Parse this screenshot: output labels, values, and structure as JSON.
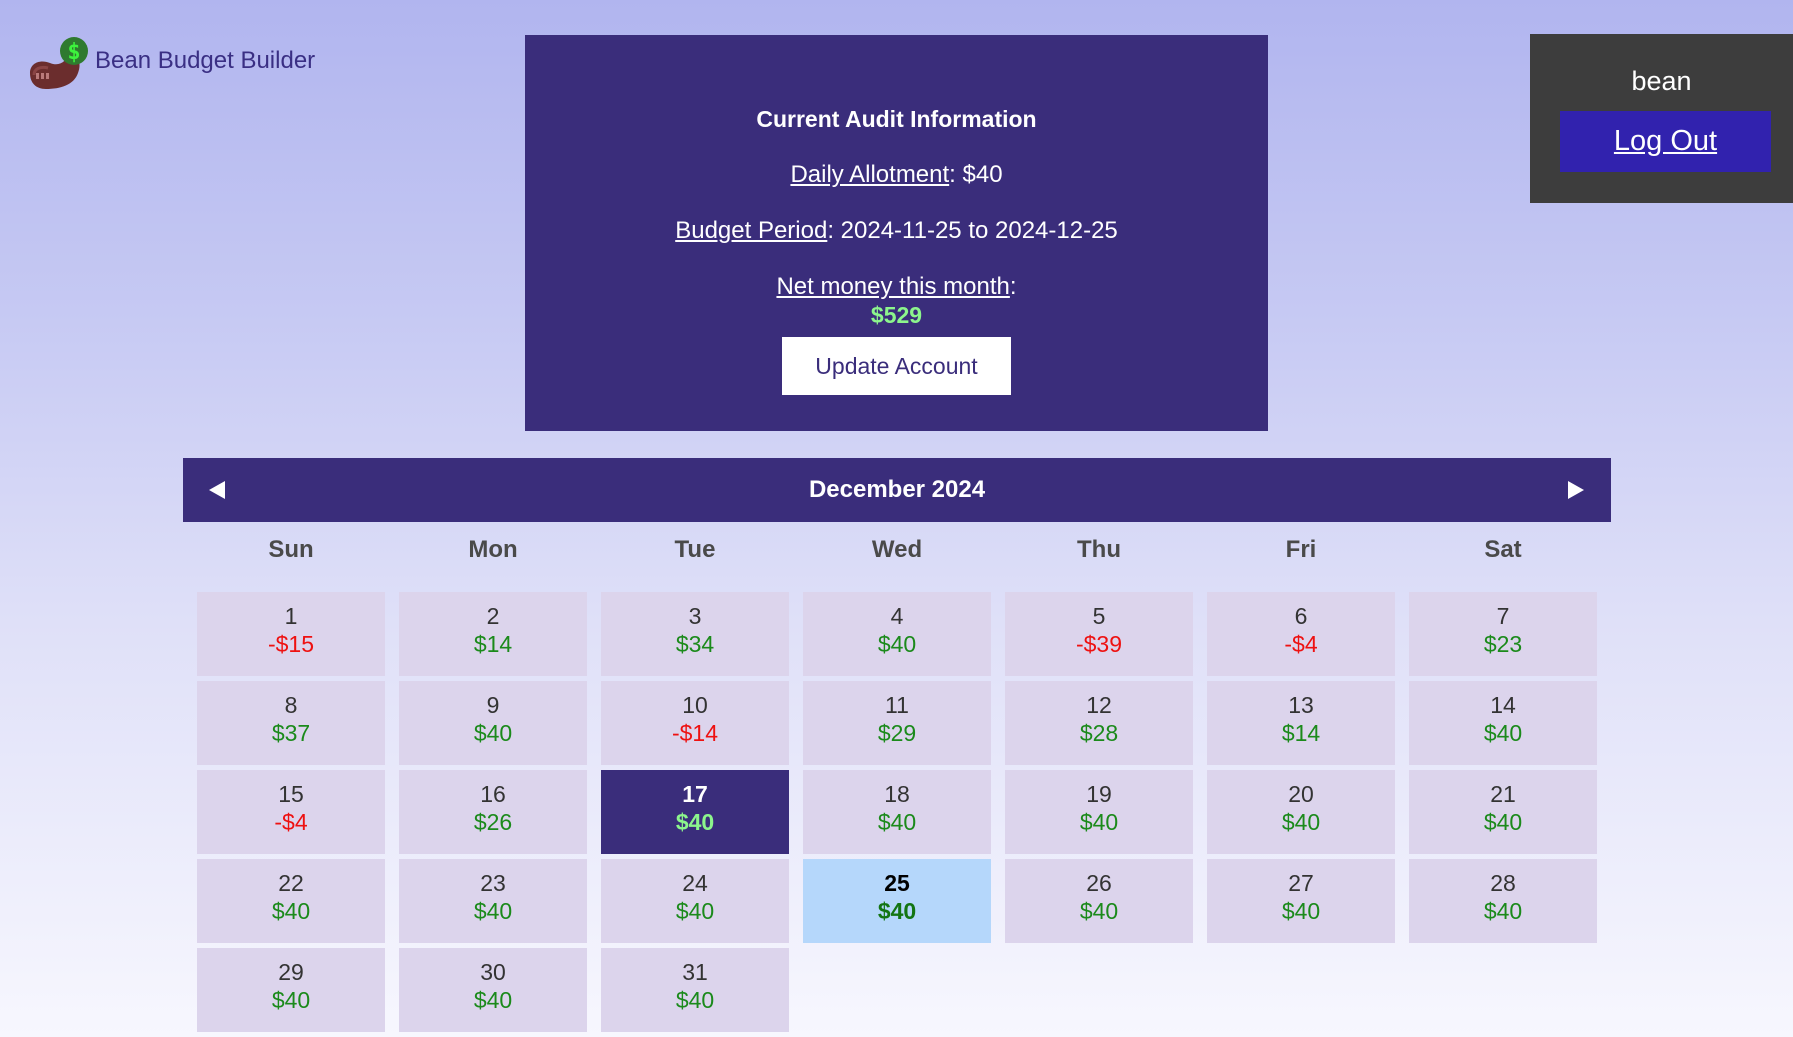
{
  "app": {
    "title": "Bean Budget Builder",
    "logo_icon": "bean-dollar-icon"
  },
  "audit": {
    "title": "Current Audit Information",
    "allotment_label": "Daily Allotment",
    "allotment_value": ": $40",
    "period_label": "Budget Period",
    "period_value": ": 2024-11-25 to 2024-12-25",
    "net_label": "Net money this month",
    "net_colon": ":",
    "net_value": "$529",
    "update_button": "Update Account"
  },
  "user": {
    "name": "bean",
    "logout_label": "Log Out"
  },
  "calendar": {
    "month_label": "December 2024",
    "prev_icon": "triangle-left-icon",
    "next_icon": "triangle-right-icon",
    "weekdays": [
      "Sun",
      "Mon",
      "Tue",
      "Wed",
      "Thu",
      "Fri",
      "Sat"
    ],
    "start_weekday": "Sun",
    "selected_day": 17,
    "today_day": 25,
    "days": [
      {
        "day": "1",
        "amount": "-$15",
        "sign": "neg"
      },
      {
        "day": "2",
        "amount": "$14",
        "sign": "pos"
      },
      {
        "day": "3",
        "amount": "$34",
        "sign": "pos"
      },
      {
        "day": "4",
        "amount": "$40",
        "sign": "pos"
      },
      {
        "day": "5",
        "amount": "-$39",
        "sign": "neg"
      },
      {
        "day": "6",
        "amount": "-$4",
        "sign": "neg"
      },
      {
        "day": "7",
        "amount": "$23",
        "sign": "pos"
      },
      {
        "day": "8",
        "amount": "$37",
        "sign": "pos"
      },
      {
        "day": "9",
        "amount": "$40",
        "sign": "pos"
      },
      {
        "day": "10",
        "amount": "-$14",
        "sign": "neg"
      },
      {
        "day": "11",
        "amount": "$29",
        "sign": "pos"
      },
      {
        "day": "12",
        "amount": "$28",
        "sign": "pos"
      },
      {
        "day": "13",
        "amount": "$14",
        "sign": "pos"
      },
      {
        "day": "14",
        "amount": "$40",
        "sign": "pos"
      },
      {
        "day": "15",
        "amount": "-$4",
        "sign": "neg"
      },
      {
        "day": "16",
        "amount": "$26",
        "sign": "pos"
      },
      {
        "day": "17",
        "amount": "$40",
        "sign": "pos"
      },
      {
        "day": "18",
        "amount": "$40",
        "sign": "pos"
      },
      {
        "day": "19",
        "amount": "$40",
        "sign": "pos"
      },
      {
        "day": "20",
        "amount": "$40",
        "sign": "pos"
      },
      {
        "day": "21",
        "amount": "$40",
        "sign": "pos"
      },
      {
        "day": "22",
        "amount": "$40",
        "sign": "pos"
      },
      {
        "day": "23",
        "amount": "$40",
        "sign": "pos"
      },
      {
        "day": "24",
        "amount": "$40",
        "sign": "pos"
      },
      {
        "day": "25",
        "amount": "$40",
        "sign": "pos"
      },
      {
        "day": "26",
        "amount": "$40",
        "sign": "pos"
      },
      {
        "day": "27",
        "amount": "$40",
        "sign": "pos"
      },
      {
        "day": "28",
        "amount": "$40",
        "sign": "pos"
      },
      {
        "day": "29",
        "amount": "$40",
        "sign": "pos"
      },
      {
        "day": "30",
        "amount": "$40",
        "sign": "pos"
      },
      {
        "day": "31",
        "amount": "$40",
        "sign": "pos"
      }
    ]
  },
  "colors": {
    "panel": "#3a2d7b",
    "accent_button": "#3122ae",
    "positive": "#1b8a1b",
    "negative": "#ee1111",
    "net_highlight": "#8cf58c",
    "day_cell": "#dcd4ec",
    "today_cell": "#b5d7fb"
  }
}
